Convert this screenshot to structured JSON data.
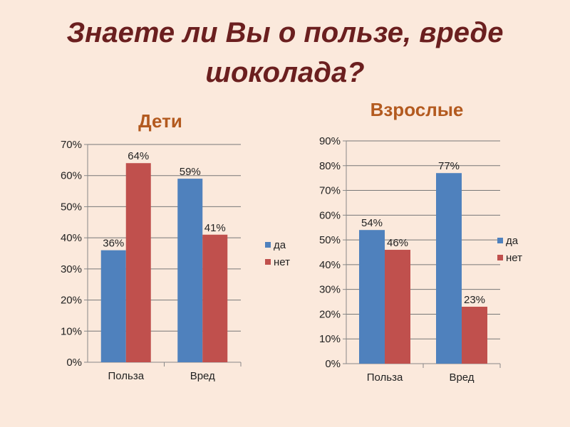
{
  "title": "Знаете ли Вы о пользе, вреде шоколада?",
  "chart_data": [
    {
      "type": "bar",
      "title": "Дети",
      "categories": [
        "Польза",
        "Вред"
      ],
      "series": [
        {
          "name": "да",
          "color": "#4f81bd",
          "values": [
            36,
            59
          ]
        },
        {
          "name": "нет",
          "color": "#c0504d",
          "values": [
            64,
            41
          ]
        }
      ],
      "value_labels": [
        [
          "36%",
          "59%"
        ],
        [
          "64%",
          "41%"
        ]
      ],
      "y_ticks": [
        "0%",
        "10%",
        "20%",
        "30%",
        "40%",
        "50%",
        "60%",
        "70%"
      ],
      "ylim": [
        0,
        70
      ],
      "grid": true,
      "legend_position": "right"
    },
    {
      "type": "bar",
      "title": "Взрослые",
      "categories": [
        "Польза",
        "Вред"
      ],
      "series": [
        {
          "name": "да",
          "color": "#4f81bd",
          "values": [
            54,
            77
          ]
        },
        {
          "name": "нет",
          "color": "#c0504d",
          "values": [
            46,
            23
          ]
        }
      ],
      "value_labels": [
        [
          "54%",
          "77%"
        ],
        [
          "46%",
          "23%"
        ]
      ],
      "y_ticks": [
        "0%",
        "10%",
        "20%",
        "30%",
        "40%",
        "50%",
        "60%",
        "70%",
        "80%",
        "90%"
      ],
      "ylim": [
        0,
        90
      ],
      "grid": true,
      "legend_position": "right"
    }
  ]
}
